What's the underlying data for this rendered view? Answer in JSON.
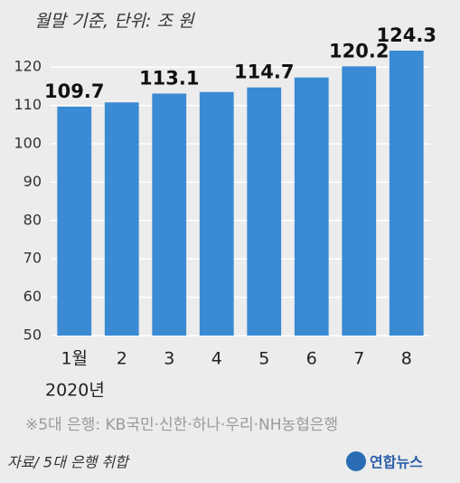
{
  "chart_data": {
    "type": "bar",
    "title": "월말 기준, 단위: 조 원",
    "categories": [
      "1월",
      "2",
      "3",
      "4",
      "5",
      "6",
      "7",
      "8"
    ],
    "x_subtitle": "2020년",
    "values": [
      109.7,
      110.8,
      113.1,
      113.5,
      114.7,
      117.3,
      120.2,
      124.3
    ],
    "value_labels": [
      "109.7",
      null,
      "113.1",
      null,
      "114.7",
      null,
      "120.2",
      "124.3"
    ],
    "color": "#3a8ad4",
    "ylim": [
      50,
      125
    ],
    "yticks": [
      50,
      60,
      70,
      80,
      90,
      100,
      110,
      120
    ],
    "grid": true,
    "note": "※5대 은행: KB국민·신한·하나·우리·NH농협은행",
    "source": "자료/ 5대 은행 취합",
    "logo": "연합뉴스"
  }
}
